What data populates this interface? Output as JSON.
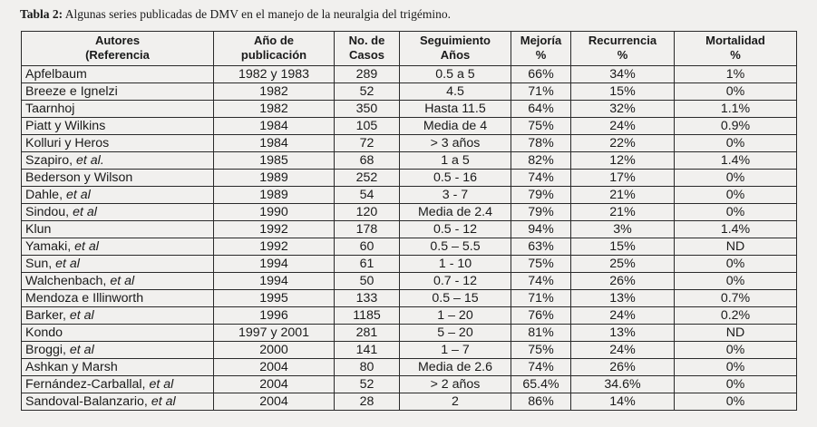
{
  "caption": {
    "label": "Tabla 2:",
    "text": "Algunas series publicadas de DMV en el manejo de la neuralgia del trigémino."
  },
  "headers": [
    [
      "Autores",
      "(Referencia"
    ],
    [
      "Año de",
      "publicación"
    ],
    [
      "No. de",
      "Casos"
    ],
    [
      "Seguimiento",
      "Años"
    ],
    [
      "Mejoría",
      "%"
    ],
    [
      "Recurrencia",
      "%"
    ],
    [
      "Mortalidad",
      "%"
    ]
  ],
  "rows": [
    {
      "author": "Apfelbaum",
      "etal": "",
      "year": "1982 y 1983",
      "cases": "289",
      "followup": "0.5 a 5",
      "improvement": "66%",
      "recurrence": "34%",
      "mortality": "1%"
    },
    {
      "author": "Breeze e Ignelzi",
      "etal": "",
      "year": "1982",
      "cases": "52",
      "followup": "4.5",
      "improvement": "71%",
      "recurrence": "15%",
      "mortality": "0%"
    },
    {
      "author": "Taarnhoj",
      "etal": "",
      "year": "1982",
      "cases": "350",
      "followup": "Hasta 11.5",
      "improvement": "64%",
      "recurrence": "32%",
      "mortality": "1.1%"
    },
    {
      "author": "Piatt y Wilkins",
      "etal": "",
      "year": "1984",
      "cases": "105",
      "followup": "Media de 4",
      "improvement": "75%",
      "recurrence": "24%",
      "mortality": "0.9%"
    },
    {
      "author": "Kolluri y Heros",
      "etal": "",
      "year": "1984",
      "cases": "72",
      "followup": "> 3 años",
      "improvement": "78%",
      "recurrence": "22%",
      "mortality": "0%"
    },
    {
      "author": "Szapiro, ",
      "etal": "et al.",
      "year": "1985",
      "cases": "68",
      "followup": "1 a 5",
      "improvement": "82%",
      "recurrence": "12%",
      "mortality": "1.4%"
    },
    {
      "author": "Bederson y Wilson",
      "etal": "",
      "year": "1989",
      "cases": "252",
      "followup": "0.5 - 16",
      "improvement": "74%",
      "recurrence": "17%",
      "mortality": "0%"
    },
    {
      "author": "Dahle, ",
      "etal": "et al",
      "year": "1989",
      "cases": "54",
      "followup": "3 - 7",
      "improvement": "79%",
      "recurrence": "21%",
      "mortality": "0%"
    },
    {
      "author": "Sindou, ",
      "etal": "et al",
      "year": "1990",
      "cases": "120",
      "followup": "Media de 2.4",
      "improvement": "79%",
      "recurrence": "21%",
      "mortality": "0%"
    },
    {
      "author": "Klun",
      "etal": "",
      "year": "1992",
      "cases": "178",
      "followup": "0.5 - 12",
      "improvement": "94%",
      "recurrence": "3%",
      "mortality": "1.4%"
    },
    {
      "author": "Yamaki, ",
      "etal": "et al",
      "year": "1992",
      "cases": "60",
      "followup": "0.5 – 5.5",
      "improvement": "63%",
      "recurrence": "15%",
      "mortality": "ND"
    },
    {
      "author": "Sun, ",
      "etal": "et al",
      "year": "1994",
      "cases": "61",
      "followup": "1 - 10",
      "improvement": "75%",
      "recurrence": "25%",
      "mortality": "0%"
    },
    {
      "author": "Walchenbach, ",
      "etal": "et al",
      "year": "1994",
      "cases": "50",
      "followup": "0.7 - 12",
      "improvement": "74%",
      "recurrence": "26%",
      "mortality": "0%"
    },
    {
      "author": "Mendoza e Illinworth",
      "etal": "",
      "year": "1995",
      "cases": "133",
      "followup": "0.5 – 15",
      "improvement": "71%",
      "recurrence": "13%",
      "mortality": "0.7%"
    },
    {
      "author": "Barker, ",
      "etal": "et al",
      "year": "1996",
      "cases": "1185",
      "followup": "1 – 20",
      "improvement": "76%",
      "recurrence": "24%",
      "mortality": "0.2%"
    },
    {
      "author": "Kondo",
      "etal": "",
      "year": "1997 y 2001",
      "cases": "281",
      "followup": "5 – 20",
      "improvement": "81%",
      "recurrence": "13%",
      "mortality": "ND"
    },
    {
      "author": "Broggi, ",
      "etal": "et al",
      "year": "2000",
      "cases": "141",
      "followup": "1 – 7",
      "improvement": "75%",
      "recurrence": "24%",
      "mortality": "0%"
    },
    {
      "author": "Ashkan y Marsh",
      "etal": "",
      "year": "2004",
      "cases": "80",
      "followup": "Media de 2.6",
      "improvement": "74%",
      "recurrence": "26%",
      "mortality": "0%"
    },
    {
      "author": "Fernández-Carballal, ",
      "etal": "et al",
      "year": "2004",
      "cases": "52",
      "followup": "> 2 años",
      "improvement": "65.4%",
      "recurrence": "34.6%",
      "mortality": "0%"
    },
    {
      "author": "Sandoval-Balanzario, ",
      "etal": "et al",
      "year": "2004",
      "cases": "28",
      "followup": "2",
      "improvement": "86%",
      "recurrence": "14%",
      "mortality": "0%"
    }
  ]
}
